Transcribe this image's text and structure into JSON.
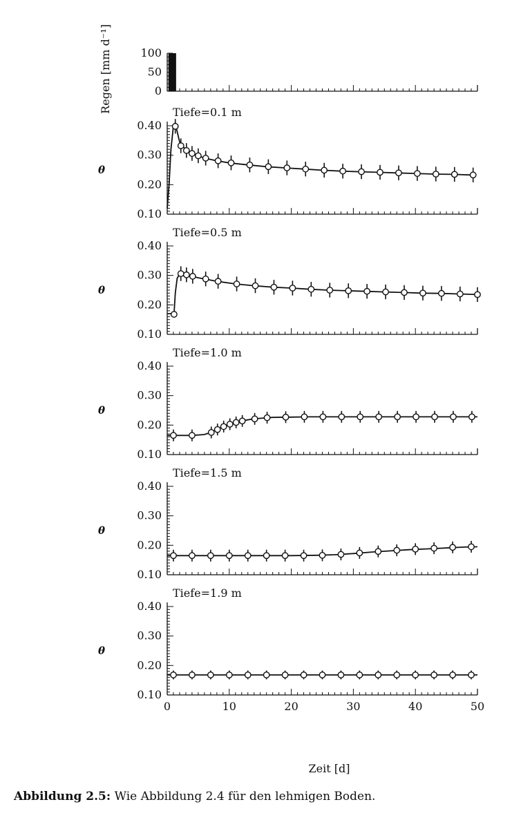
{
  "caption": {
    "label": "Abbildung 2.5:",
    "text": "Wie Abbildung 2.4 für den lehmigen Boden."
  },
  "chart_data": {
    "type": "line",
    "xlabel": "Zeit [d]",
    "xlim": [
      0,
      50
    ],
    "xticks": [
      "0",
      "10",
      "20",
      "30",
      "40",
      "50"
    ],
    "rain": {
      "ylabel": "Regen [mm d⁻¹]",
      "ylim": [
        0,
        100
      ],
      "yticks": [
        "0",
        "50",
        "100"
      ],
      "x": [
        0.2,
        0.4,
        0.6,
        0.8,
        1.0,
        1.2
      ],
      "values": [
        100,
        100,
        100,
        100,
        100,
        100
      ]
    },
    "panels": [
      {
        "title": "Tiefe=0.1 m",
        "ylabel": "θ",
        "ylim": [
          0.1,
          0.4
        ],
        "yticks": [
          "0.10",
          "0.20",
          "0.30",
          "0.40"
        ],
        "line": {
          "x": [
            0,
            0.3,
            0.6,
            1,
            1.3,
            1.6,
            2,
            2.5,
            3,
            4,
            5,
            6,
            8,
            10,
            13,
            16,
            19,
            22,
            25,
            28,
            31,
            34,
            37,
            40,
            43,
            46,
            49
          ],
          "y": [
            0.12,
            0.2,
            0.32,
            0.4,
            0.41,
            0.38,
            0.345,
            0.33,
            0.32,
            0.305,
            0.298,
            0.29,
            0.281,
            0.274,
            0.267,
            0.261,
            0.257,
            0.253,
            0.249,
            0.246,
            0.244,
            0.242,
            0.24,
            0.238,
            0.236,
            0.235,
            0.233
          ]
        },
        "points": {
          "x": [
            1.3,
            2.2,
            3.1,
            4,
            5,
            6.2,
            8.2,
            10.3,
            13.3,
            16.3,
            19.3,
            22.3,
            25.3,
            28.3,
            31.3,
            34.3,
            37.3,
            40.3,
            43.3,
            46.3,
            49.3
          ],
          "y": [
            0.398,
            0.332,
            0.316,
            0.306,
            0.298,
            0.29,
            0.281,
            0.274,
            0.267,
            0.261,
            0.257,
            0.253,
            0.249,
            0.246,
            0.244,
            0.242,
            0.24,
            0.238,
            0.236,
            0.235,
            0.233
          ],
          "err": [
            0.025,
            0.025,
            0.025,
            0.025,
            0.025,
            0.025,
            0.025,
            0.025,
            0.025,
            0.025,
            0.025,
            0.025,
            0.025,
            0.025,
            0.025,
            0.025,
            0.025,
            0.025,
            0.025,
            0.025,
            0.025
          ]
        }
      },
      {
        "title": "Tiefe=0.5 m",
        "ylabel": "θ",
        "ylim": [
          0.1,
          0.4
        ],
        "yticks": [
          "0.10",
          "0.20",
          "0.30",
          "0.40"
        ],
        "line": {
          "x": [
            0,
            1.1,
            1.3,
            1.6,
            2,
            3,
            4,
            5,
            6,
            8,
            11,
            14,
            17,
            20,
            23,
            26,
            29,
            32,
            35,
            38,
            41,
            44,
            47,
            50
          ],
          "y": [
            0.17,
            0.17,
            0.24,
            0.29,
            0.305,
            0.302,
            0.297,
            0.292,
            0.288,
            0.28,
            0.271,
            0.265,
            0.26,
            0.257,
            0.253,
            0.25,
            0.248,
            0.246,
            0.244,
            0.242,
            0.24,
            0.239,
            0.237,
            0.235
          ]
        },
        "points": {
          "x": [
            1.1,
            2.2,
            3.1,
            4.1,
            6.2,
            8.2,
            11.2,
            14.2,
            17.2,
            20.2,
            23.2,
            26.2,
            29.2,
            32.2,
            35.2,
            38.2,
            41.2,
            44.2,
            47.2,
            50
          ],
          "y": [
            0.168,
            0.306,
            0.302,
            0.297,
            0.288,
            0.28,
            0.271,
            0.265,
            0.26,
            0.257,
            0.253,
            0.25,
            0.248,
            0.246,
            0.244,
            0.242,
            0.24,
            0.239,
            0.237,
            0.235
          ],
          "err": [
            0.0,
            0.025,
            0.025,
            0.025,
            0.025,
            0.025,
            0.025,
            0.025,
            0.025,
            0.025,
            0.025,
            0.025,
            0.025,
            0.025,
            0.025,
            0.025,
            0.025,
            0.025,
            0.025,
            0.025
          ]
        }
      },
      {
        "title": "Tiefe=1.0 m",
        "ylabel": "θ",
        "ylim": [
          0.1,
          0.4
        ],
        "yticks": [
          "0.10",
          "0.20",
          "0.30",
          "0.40"
        ],
        "line": {
          "x": [
            0,
            2,
            4,
            6,
            7,
            8,
            9,
            10,
            11,
            12,
            13,
            14,
            15,
            17,
            20,
            23,
            26,
            29,
            32,
            35,
            38,
            41,
            44,
            47,
            50
          ],
          "y": [
            0.165,
            0.165,
            0.165,
            0.168,
            0.175,
            0.185,
            0.195,
            0.203,
            0.209,
            0.214,
            0.218,
            0.221,
            0.223,
            0.226,
            0.227,
            0.228,
            0.228,
            0.228,
            0.228,
            0.228,
            0.228,
            0.228,
            0.228,
            0.228,
            0.228
          ]
        },
        "points": {
          "x": [
            1,
            4,
            7.1,
            8.1,
            9.1,
            10.1,
            11.1,
            12.1,
            14.1,
            16.1,
            19.1,
            22.1,
            25.1,
            28.1,
            31.1,
            34.1,
            37.1,
            40.1,
            43.1,
            46.1,
            49.1
          ],
          "y": [
            0.165,
            0.165,
            0.175,
            0.185,
            0.195,
            0.203,
            0.209,
            0.214,
            0.221,
            0.225,
            0.227,
            0.228,
            0.228,
            0.228,
            0.228,
            0.228,
            0.228,
            0.228,
            0.228,
            0.228,
            0.228
          ],
          "err": [
            0.02,
            0.02,
            0.02,
            0.02,
            0.02,
            0.02,
            0.02,
            0.02,
            0.02,
            0.02,
            0.02,
            0.02,
            0.02,
            0.02,
            0.02,
            0.02,
            0.02,
            0.02,
            0.02,
            0.02,
            0.02
          ]
        }
      },
      {
        "title": "Tiefe=1.5 m",
        "ylabel": "θ",
        "ylim": [
          0.1,
          0.4
        ],
        "yticks": [
          "0.10",
          "0.20",
          "0.30",
          "0.40"
        ],
        "line": {
          "x": [
            0,
            5,
            10,
            15,
            20,
            24,
            27,
            30,
            33,
            36,
            39,
            42,
            45,
            48,
            50
          ],
          "y": [
            0.165,
            0.165,
            0.165,
            0.165,
            0.165,
            0.166,
            0.168,
            0.172,
            0.177,
            0.181,
            0.185,
            0.188,
            0.191,
            0.194,
            0.195
          ]
        },
        "points": {
          "x": [
            1,
            4,
            7,
            10,
            13,
            16,
            19,
            22,
            25,
            28,
            31,
            34,
            37,
            40,
            43,
            46,
            49
          ],
          "y": [
            0.165,
            0.165,
            0.165,
            0.165,
            0.165,
            0.165,
            0.165,
            0.165,
            0.166,
            0.169,
            0.174,
            0.179,
            0.183,
            0.187,
            0.19,
            0.193,
            0.195
          ],
          "err": [
            0.02,
            0.02,
            0.02,
            0.02,
            0.02,
            0.02,
            0.02,
            0.02,
            0.02,
            0.02,
            0.02,
            0.02,
            0.02,
            0.02,
            0.02,
            0.02,
            0.02
          ]
        }
      },
      {
        "title": "Tiefe=1.9 m",
        "ylabel": "θ",
        "ylim": [
          0.1,
          0.4
        ],
        "yticks": [
          "0.10",
          "0.20",
          "0.30",
          "0.40"
        ],
        "line": {
          "x": [
            0,
            50
          ],
          "y": [
            0.168,
            0.168
          ]
        },
        "points": {
          "x": [
            1,
            4,
            7,
            10,
            13,
            16,
            19,
            22,
            25,
            28,
            31,
            34,
            37,
            40,
            43,
            46,
            49
          ],
          "y": [
            0.168,
            0.168,
            0.168,
            0.168,
            0.168,
            0.168,
            0.168,
            0.168,
            0.168,
            0.168,
            0.168,
            0.168,
            0.168,
            0.168,
            0.168,
            0.168,
            0.168
          ],
          "err": [
            0.015,
            0.015,
            0.015,
            0.015,
            0.015,
            0.015,
            0.015,
            0.015,
            0.015,
            0.015,
            0.015,
            0.015,
            0.015,
            0.015,
            0.015,
            0.015,
            0.015
          ]
        }
      }
    ]
  }
}
